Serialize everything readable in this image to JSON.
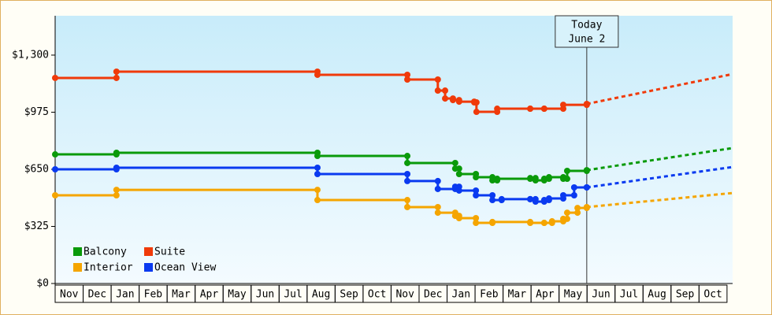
{
  "chart_data": {
    "type": "step-line",
    "categories": [
      "Nov",
      "Dec",
      "Jan",
      "Feb",
      "Mar",
      "Apr",
      "May",
      "Jun",
      "Jul",
      "Aug",
      "Sep",
      "Oct",
      "Nov",
      "Dec",
      "Jan",
      "Feb",
      "Mar",
      "Apr",
      "May",
      "Jun",
      "Jul",
      "Aug",
      "Sep",
      "Oct"
    ],
    "xlim": [
      0,
      24.2
    ],
    "ylim": [
      0,
      1524
    ],
    "yticks": [
      {
        "value": 0,
        "label": "$0"
      },
      {
        "value": 325,
        "label": "$325"
      },
      {
        "value": 650,
        "label": "$650"
      },
      {
        "value": 975,
        "label": "$975"
      },
      {
        "value": 1300,
        "label": "$1,300"
      }
    ],
    "today": {
      "x": 18.99,
      "label": "Today",
      "date": "June 2"
    },
    "series": [
      {
        "name": "Balcony",
        "color": "#0a9a0a",
        "x": [
          0,
          2.19,
          9.37,
          12.58,
          14.29,
          14.43,
          15.03,
          15.62,
          15.79,
          16.97,
          17.16,
          17.47,
          17.64,
          18.15,
          18.29,
          18.99
        ],
        "values": [
          735,
          744,
          726,
          686,
          654,
          623,
          605,
          587,
          596,
          600,
          587,
          596,
          605,
          596,
          641,
          645
        ],
        "projected": 771
      },
      {
        "name": "Suite",
        "color": "#f03a0a",
        "x": [
          0,
          2.19,
          9.37,
          12.58,
          13.67,
          13.93,
          14.21,
          14.43,
          14.97,
          15.05,
          15.79,
          16.97,
          17.47,
          18.15,
          18.99
        ],
        "values": [
          1170,
          1206,
          1188,
          1161,
          1098,
          1053,
          1044,
          1035,
          1031,
          977,
          995,
          995,
          995,
          1017,
          1022
        ],
        "projected": 1192
      },
      {
        "name": "Interior",
        "color": "#f5a500",
        "x": [
          0,
          2.19,
          9.37,
          12.58,
          13.67,
          14.29,
          14.43,
          15.03,
          15.62,
          16.97,
          17.47,
          17.75,
          18.15,
          18.29,
          18.66,
          18.99
        ],
        "values": [
          502,
          533,
          475,
          435,
          403,
          385,
          372,
          345,
          350,
          345,
          345,
          354,
          368,
          403,
          430,
          435
        ],
        "projected": 515
      },
      {
        "name": "Ocean View",
        "color": "#0a3af0",
        "x": [
          0,
          2.19,
          9.37,
          12.58,
          13.67,
          14.29,
          14.43,
          15.03,
          15.62,
          15.95,
          16.97,
          17.16,
          17.47,
          17.64,
          18.15,
          18.54,
          18.99
        ],
        "values": [
          650,
          659,
          623,
          583,
          538,
          551,
          529,
          502,
          475,
          480,
          480,
          466,
          475,
          484,
          502,
          547,
          547
        ],
        "projected": 663
      }
    ]
  }
}
